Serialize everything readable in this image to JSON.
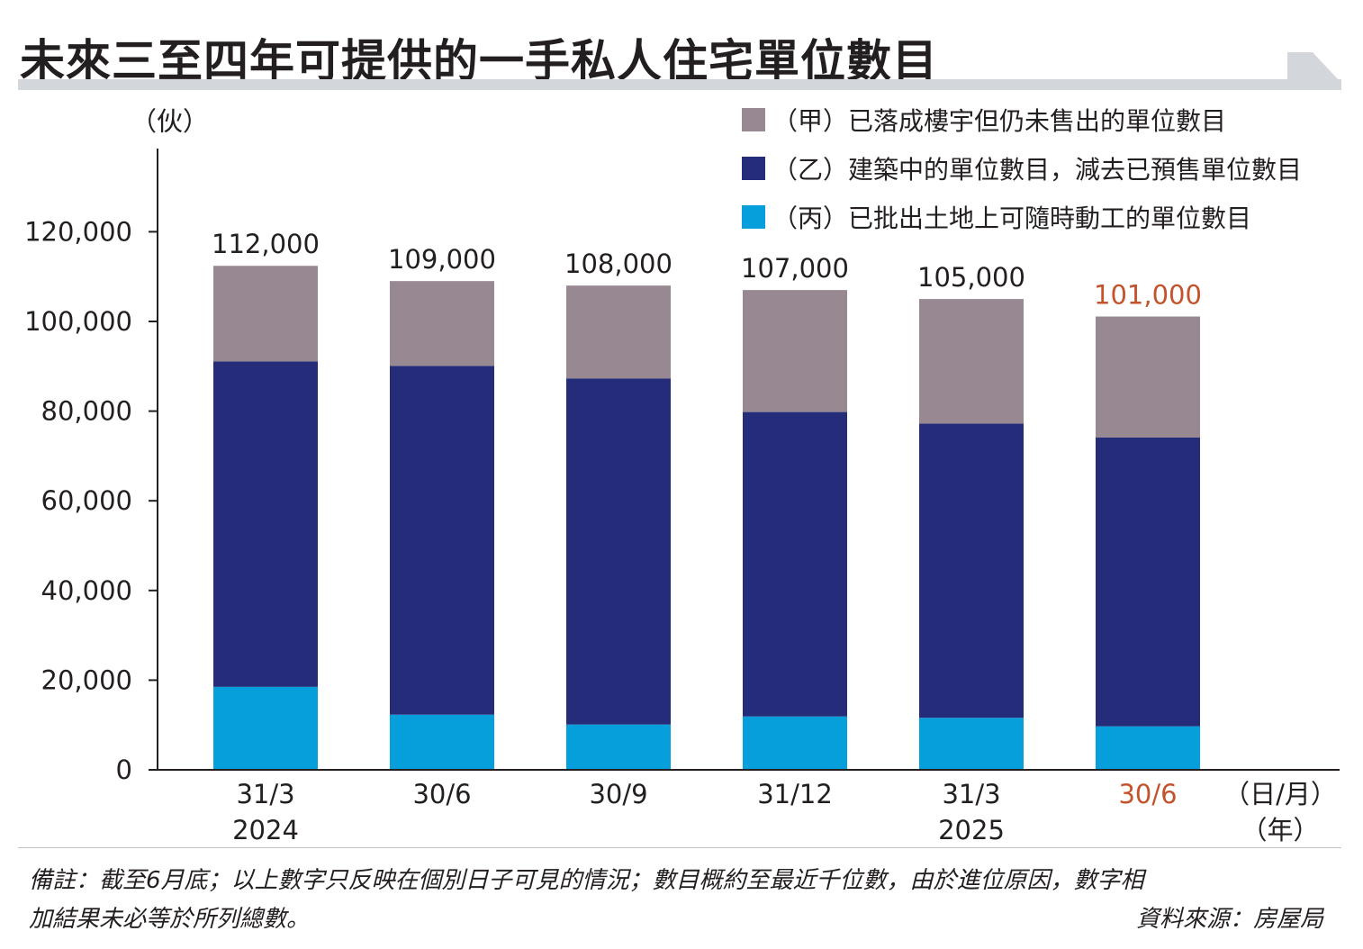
{
  "title": "未來三至四年可提供的一手私人住宅單位數目",
  "colors": {
    "completed": "#978891",
    "construction": "#252d7b",
    "land": "#069fdb",
    "highlight": "#c4532c",
    "text": "#231f20",
    "rule": "#d3d7dc"
  },
  "chart_data": {
    "type": "bar",
    "stacked": true,
    "ylabel": "（伙）",
    "xlabel": "（日/月）",
    "xlabel_year": "（年）",
    "ylim": [
      0,
      140000
    ],
    "yticks": [
      0,
      20000,
      40000,
      60000,
      80000,
      100000,
      120000
    ],
    "ytick_labels": [
      "0",
      "20,000",
      "40,000",
      "60,000",
      "80,000",
      "100,000",
      "120,000"
    ],
    "categories": [
      "31/3",
      "30/6",
      "30/9",
      "31/12",
      "31/3",
      "30/6"
    ],
    "year_labels": [
      "2024",
      "",
      "",
      "",
      "2025",
      ""
    ],
    "highlight_index": 5,
    "totals": [
      112000,
      109000,
      108000,
      107000,
      105000,
      101000
    ],
    "total_labels": [
      "112,000",
      "109,000",
      "108,000",
      "107,000",
      "105,000",
      "101,000"
    ],
    "legend_position": "top-right",
    "series": [
      {
        "name": "（丙）已批出土地上可隨時動工的單位數目",
        "color_key": "land",
        "values": [
          18500,
          12300,
          10100,
          11900,
          11600,
          9700
        ]
      },
      {
        "name": "（乙）建築中的單位數目，減去已預售單位數目",
        "color_key": "construction",
        "values": [
          72600,
          77800,
          77200,
          67900,
          65600,
          64400
        ]
      },
      {
        "name": "（甲）已落成樓宇但仍未售出的單位數目",
        "color_key": "completed",
        "values": [
          21300,
          18900,
          20700,
          27200,
          27800,
          27000
        ]
      }
    ],
    "legend_order": [
      2,
      1,
      0
    ]
  },
  "footer": {
    "note_line1": "備註：截至6月底；以上數字只反映在個別日子可見的情況；數目概約至最近千位數，由於進位原因，數字相",
    "note_line2": "加結果未必等於所列總數。",
    "source": "資料來源：房屋局"
  }
}
